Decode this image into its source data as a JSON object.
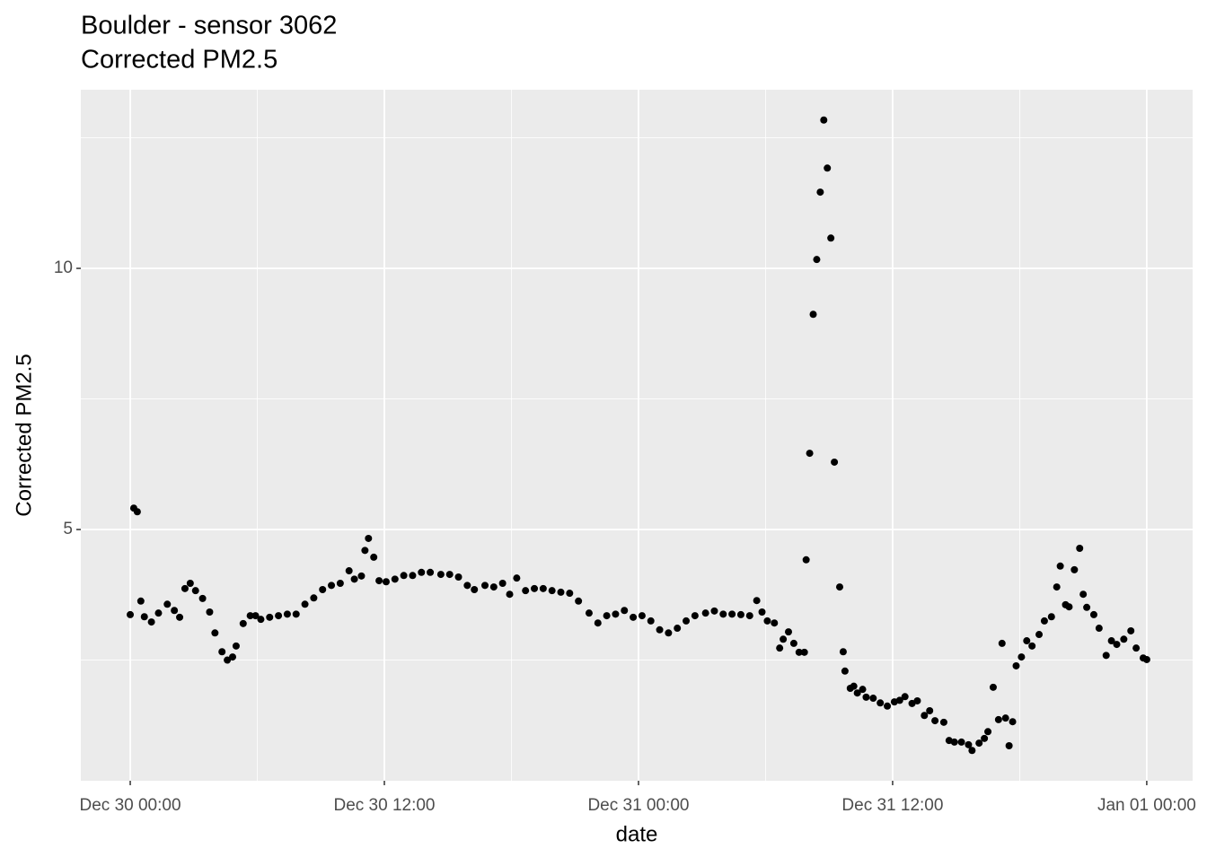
{
  "chart_data": {
    "type": "scatter",
    "title": "Boulder - sensor 3062",
    "subtitle": "Corrected PM2.5",
    "x_label": "date",
    "y_label": "Corrected PM2.5",
    "color": "#000000",
    "panel_color": "#ebebeb",
    "grid": true,
    "xlim": [
      "Dec 29 21:40",
      "Jan 01 02:10"
    ],
    "xticks": [
      "Dec 30 00:00",
      "Dec 30 12:00",
      "Dec 31 00:00",
      "Dec 31 12:00",
      "Jan 01 00:00"
    ],
    "xminorticks": [
      "Dec 30 06:00",
      "Dec 30 18:00",
      "Dec 31 06:00",
      "Dec 31 18:00"
    ],
    "ylim": [
      0.19,
      13.42
    ],
    "yticks": [
      5,
      10
    ],
    "yminorticks": [
      2.5,
      7.5,
      12.5
    ],
    "x": [
      "Dec 30 00:00",
      "Dec 30 00:10",
      "Dec 30 00:20",
      "Dec 30 00:30",
      "Dec 30 00:40",
      "Dec 30 01:00",
      "Dec 30 01:20",
      "Dec 30 01:45",
      "Dec 30 02:05",
      "Dec 30 02:20",
      "Dec 30 02:35",
      "Dec 30 02:50",
      "Dec 30 03:05",
      "Dec 30 03:25",
      "Dec 30 03:45",
      "Dec 30 04:00",
      "Dec 30 04:20",
      "Dec 30 04:35",
      "Dec 30 04:50",
      "Dec 30 05:00",
      "Dec 30 05:20",
      "Dec 30 05:40",
      "Dec 30 05:55",
      "Dec 30 06:10",
      "Dec 30 06:35",
      "Dec 30 07:00",
      "Dec 30 07:25",
      "Dec 30 07:50",
      "Dec 30 08:15",
      "Dec 30 08:40",
      "Dec 30 09:05",
      "Dec 30 09:30",
      "Dec 30 09:55",
      "Dec 30 10:20",
      "Dec 30 10:35",
      "Dec 30 10:55",
      "Dec 30 11:05",
      "Dec 30 11:15",
      "Dec 30 11:30",
      "Dec 30 11:45",
      "Dec 30 12:05",
      "Dec 30 12:30",
      "Dec 30 12:55",
      "Dec 30 13:20",
      "Dec 30 13:45",
      "Dec 30 14:10",
      "Dec 30 14:40",
      "Dec 30 15:05",
      "Dec 30 15:30",
      "Dec 30 15:55",
      "Dec 30 16:15",
      "Dec 30 16:45",
      "Dec 30 17:10",
      "Dec 30 17:35",
      "Dec 30 17:55",
      "Dec 30 18:15",
      "Dec 30 18:40",
      "Dec 30 19:05",
      "Dec 30 19:30",
      "Dec 30 19:55",
      "Dec 30 20:20",
      "Dec 30 20:45",
      "Dec 30 21:10",
      "Dec 30 21:40",
      "Dec 30 22:05",
      "Dec 30 22:30",
      "Dec 30 22:55",
      "Dec 30 23:20",
      "Dec 30 23:45",
      "Dec 31 00:10",
      "Dec 31 00:35",
      "Dec 31 01:00",
      "Dec 31 01:25",
      "Dec 31 01:50",
      "Dec 31 02:15",
      "Dec 31 02:40",
      "Dec 31 03:10",
      "Dec 31 03:35",
      "Dec 31 04:00",
      "Dec 31 04:25",
      "Dec 31 04:50",
      "Dec 31 05:15",
      "Dec 31 05:35",
      "Dec 31 05:50",
      "Dec 31 06:05",
      "Dec 31 06:25",
      "Dec 31 06:40",
      "Dec 31 06:50",
      "Dec 31 07:05",
      "Dec 31 07:20",
      "Dec 31 07:35",
      "Dec 31 07:50",
      "Dec 31 07:55",
      "Dec 31 08:05",
      "Dec 31 08:15",
      "Dec 31 08:25",
      "Dec 31 08:35",
      "Dec 31 08:45",
      "Dec 31 08:55",
      "Dec 31 09:05",
      "Dec 31 09:15",
      "Dec 31 09:30",
      "Dec 31 09:40",
      "Dec 31 09:45",
      "Dec 31 10:00",
      "Dec 31 10:10",
      "Dec 31 10:20",
      "Dec 31 10:35",
      "Dec 31 10:45",
      "Dec 31 11:05",
      "Dec 31 11:25",
      "Dec 31 11:45",
      "Dec 31 12:05",
      "Dec 31 12:20",
      "Dec 31 12:35",
      "Dec 31 12:55",
      "Dec 31 13:10",
      "Dec 31 13:30",
      "Dec 31 13:45",
      "Dec 31 14:00",
      "Dec 31 14:25",
      "Dec 31 14:40",
      "Dec 31 14:55",
      "Dec 31 15:15",
      "Dec 31 15:35",
      "Dec 31 15:45",
      "Dec 31 16:05",
      "Dec 31 16:20",
      "Dec 31 16:30",
      "Dec 31 16:45",
      "Dec 31 17:00",
      "Dec 31 17:10",
      "Dec 31 17:20",
      "Dec 31 17:30",
      "Dec 31 17:40",
      "Dec 31 17:50",
      "Dec 31 18:05",
      "Dec 31 18:20",
      "Dec 31 18:35",
      "Dec 31 18:55",
      "Dec 31 19:10",
      "Dec 31 19:30",
      "Dec 31 19:45",
      "Dec 31 19:55",
      "Dec 31 20:10",
      "Dec 31 20:20",
      "Dec 31 20:35",
      "Dec 31 20:50",
      "Dec 31 21:00",
      "Dec 31 21:10",
      "Dec 31 21:30",
      "Dec 31 21:45",
      "Dec 31 22:05",
      "Dec 31 22:20",
      "Dec 31 22:35",
      "Dec 31 22:55",
      "Dec 31 23:15",
      "Dec 31 23:30",
      "Dec 31 23:50",
      "Jan 01 00:00"
    ],
    "values": [
      3.37,
      5.41,
      5.34,
      3.63,
      3.33,
      3.23,
      3.4,
      3.57,
      3.45,
      3.32,
      3.87,
      3.97,
      3.83,
      3.68,
      3.42,
      3.02,
      2.66,
      2.5,
      2.56,
      2.77,
      3.2,
      3.35,
      3.35,
      3.28,
      3.32,
      3.35,
      3.38,
      3.38,
      3.57,
      3.69,
      3.85,
      3.93,
      3.97,
      4.21,
      4.05,
      4.11,
      4.6,
      4.83,
      4.47,
      4.02,
      4.0,
      4.05,
      4.12,
      4.12,
      4.18,
      4.18,
      4.14,
      4.14,
      4.09,
      3.93,
      3.85,
      3.93,
      3.9,
      3.97,
      3.76,
      4.07,
      3.83,
      3.87,
      3.87,
      3.83,
      3.8,
      3.78,
      3.63,
      3.4,
      3.21,
      3.35,
      3.38,
      3.45,
      3.32,
      3.35,
      3.25,
      3.08,
      3.02,
      3.11,
      3.25,
      3.35,
      3.4,
      3.44,
      3.38,
      3.38,
      3.37,
      3.35,
      3.64,
      3.42,
      3.25,
      3.21,
      2.73,
      2.9,
      3.04,
      2.82,
      2.65,
      2.65,
      4.42,
      6.46,
      9.12,
      10.17,
      11.46,
      12.84,
      11.92,
      10.58,
      6.29,
      3.9,
      2.66,
      2.29,
      1.96,
      2.0,
      1.87,
      1.94,
      1.79,
      1.77,
      1.68,
      1.62,
      1.7,
      1.73,
      1.8,
      1.67,
      1.72,
      1.44,
      1.53,
      1.34,
      1.31,
      0.96,
      0.93,
      0.93,
      0.88,
      0.77,
      0.91,
      1.0,
      1.13,
      1.98,
      1.36,
      2.82,
      1.39,
      0.86,
      1.32,
      2.39,
      2.56,
      2.87,
      2.77,
      2.99,
      3.25,
      3.33,
      3.9,
      4.3,
      3.56,
      3.52,
      4.23,
      4.64,
      3.76,
      3.51,
      3.37,
      3.11,
      2.59,
      2.87,
      2.8,
      2.9,
      3.06,
      2.73,
      2.54,
      2.51
    ]
  }
}
